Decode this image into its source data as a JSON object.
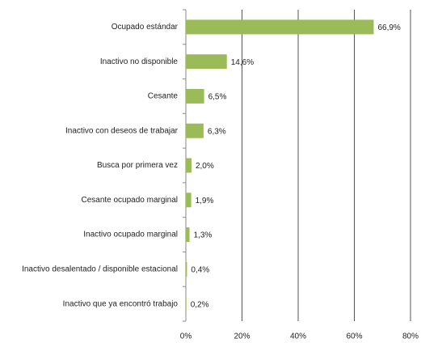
{
  "chart_data": {
    "type": "barh",
    "categories": [
      "Ocupado estándar",
      "Inactivo no disponible",
      "Cesante",
      "Inactivo con deseos de trabajar",
      "Busca por primera vez",
      "Cesante ocupado marginal",
      "Inactivo ocupado marginal",
      "Inactivo desalentado / disponible estacional",
      "Inactivo que ya encontró trabajo"
    ],
    "values": [
      66.9,
      14.6,
      6.5,
      6.3,
      2.0,
      1.9,
      1.3,
      0.4,
      0.2
    ],
    "value_labels": [
      "66,9%",
      "14,6%",
      "6,5%",
      "6,3%",
      "2,0%",
      "1,9%",
      "1,3%",
      "0,4%",
      "0,2%"
    ],
    "color": "#9bbb59",
    "xlim": [
      0,
      80
    ],
    "xticks": [
      {
        "value": 0,
        "label": "0%"
      },
      {
        "value": 20,
        "label": "20%"
      },
      {
        "value": 40,
        "label": "40%"
      },
      {
        "value": 60,
        "label": "60%"
      },
      {
        "value": 80,
        "label": "80%"
      }
    ],
    "grid": true
  }
}
